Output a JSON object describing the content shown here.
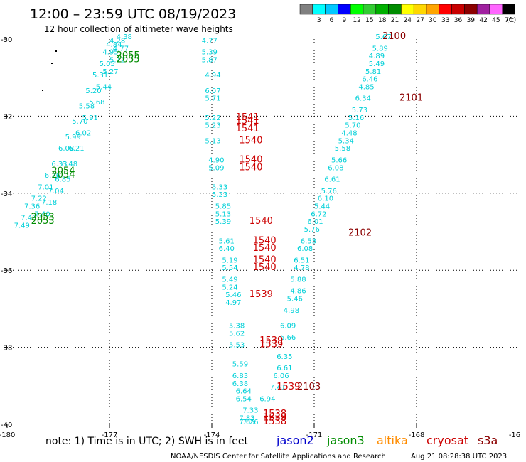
{
  "header": {
    "title": "12:00 – 23:59 UTC 08/19/2023",
    "subtitle": "12 hour collection of altimeter wave heights"
  },
  "colorbar": {
    "unit": "(ft)",
    "bins": [
      {
        "label": "",
        "color": "#808080"
      },
      {
        "label": "3",
        "color": "#00ffff"
      },
      {
        "label": "6",
        "color": "#00c8ff"
      },
      {
        "label": "9",
        "color": "#0000ff"
      },
      {
        "label": "12",
        "color": "#00ff00"
      },
      {
        "label": "15",
        "color": "#32cd32"
      },
      {
        "label": "18",
        "color": "#00b000"
      },
      {
        "label": "21",
        "color": "#008c00"
      },
      {
        "label": "24",
        "color": "#ffff00"
      },
      {
        "label": "27",
        "color": "#ffd700"
      },
      {
        "label": "30",
        "color": "#ffa500"
      },
      {
        "label": "33",
        "color": "#ff0000"
      },
      {
        "label": "36",
        "color": "#c80000"
      },
      {
        "label": "39",
        "color": "#8b0000"
      },
      {
        "label": "42",
        "color": "#a020a0"
      },
      {
        "label": "45",
        "color": "#ff66ff"
      },
      {
        "label": "70",
        "color": "#000000"
      }
    ]
  },
  "footer": {
    "note": "note: 1) Time is in UTC; 2) SWH is in feet",
    "credit": "NOAA/NESDIS Center for Satellite Applications and Research",
    "timestamp": "Aug 21 08:28:38 UTC 2023",
    "legend": [
      {
        "name": "jason2",
        "color": "#0000cc"
      },
      {
        "name": "jason3",
        "color": "#008c00"
      },
      {
        "name": "altika",
        "color": "#ff8c00"
      },
      {
        "name": "cryosat",
        "color": "#cc0000"
      },
      {
        "name": "s3a",
        "color": "#8b0000"
      }
    ]
  },
  "chart_data": {
    "type": "scatter",
    "xlim": [
      -180,
      -165
    ],
    "ylim": [
      -40,
      -30
    ],
    "x_ticks": [
      "-180",
      "-177",
      "-174",
      "-171",
      "-168",
      "-16"
    ],
    "y_ticks": [
      "-30",
      "-32",
      "-34",
      "-36",
      "-38",
      "-40"
    ],
    "grid": true,
    "wave_heights": [
      {
        "lon": -174.3,
        "lat": -30.1,
        "text": "4.77"
      },
      {
        "lon": -174.3,
        "lat": -30.4,
        "text": "5.39"
      },
      {
        "lon": -174.3,
        "lat": -30.6,
        "text": "5.87"
      },
      {
        "lon": -174.2,
        "lat": -31.0,
        "text": "4.94"
      },
      {
        "lon": -174.2,
        "lat": -31.4,
        "text": "6.07"
      },
      {
        "lon": -174.2,
        "lat": -31.6,
        "text": "5.71"
      },
      {
        "lon": -174.2,
        "lat": -32.1,
        "text": "5.22"
      },
      {
        "lon": -174.2,
        "lat": -32.3,
        "text": "5.23"
      },
      {
        "lon": -174.2,
        "lat": -32.7,
        "text": "5.13"
      },
      {
        "lon": -174.1,
        "lat": -33.2,
        "text": "4.90"
      },
      {
        "lon": -174.1,
        "lat": -33.4,
        "text": "5.09"
      },
      {
        "lon": -174.0,
        "lat": -33.9,
        "text": "5.33"
      },
      {
        "lon": -174.0,
        "lat": -34.1,
        "text": "5.23"
      },
      {
        "lon": -173.9,
        "lat": -34.4,
        "text": "5.85"
      },
      {
        "lon": -173.9,
        "lat": -34.6,
        "text": "5.13"
      },
      {
        "lon": -173.9,
        "lat": -34.8,
        "text": "5.39"
      },
      {
        "lon": -173.8,
        "lat": -35.3,
        "text": "5.61"
      },
      {
        "lon": -173.8,
        "lat": -35.5,
        "text": "6.40"
      },
      {
        "lon": -173.7,
        "lat": -35.8,
        "text": "5.19"
      },
      {
        "lon": -173.7,
        "lat": -36.0,
        "text": "5.54"
      },
      {
        "lon": -173.7,
        "lat": -36.3,
        "text": "5.49"
      },
      {
        "lon": -173.7,
        "lat": -36.5,
        "text": "5.24"
      },
      {
        "lon": -173.6,
        "lat": -36.7,
        "text": "5.46"
      },
      {
        "lon": -173.6,
        "lat": -36.9,
        "text": "4.97"
      },
      {
        "lon": -173.5,
        "lat": -37.5,
        "text": "5.38"
      },
      {
        "lon": -173.5,
        "lat": -37.7,
        "text": "5.62"
      },
      {
        "lon": -173.5,
        "lat": -38.0,
        "text": "5.53"
      },
      {
        "lon": -173.4,
        "lat": -38.5,
        "text": "5.59"
      },
      {
        "lon": -173.4,
        "lat": -38.8,
        "text": "6.83"
      },
      {
        "lon": -173.4,
        "lat": -39.0,
        "text": "6.38"
      },
      {
        "lon": -173.3,
        "lat": -39.2,
        "text": "6.64"
      },
      {
        "lon": -173.3,
        "lat": -39.4,
        "text": "6.54"
      },
      {
        "lon": -173.1,
        "lat": -39.7,
        "text": "7.33"
      },
      {
        "lon": -173.2,
        "lat": -39.9,
        "text": "7.83"
      },
      {
        "lon": -173.1,
        "lat": -40.0,
        "text": "7.26"
      },
      {
        "lon": -173.2,
        "lat": -40.0,
        "text": "7.65"
      },
      {
        "lon": -172.1,
        "lat": -38.3,
        "text": "6.35"
      },
      {
        "lon": -172.1,
        "lat": -38.6,
        "text": "6.61"
      },
      {
        "lon": -172.2,
        "lat": -38.8,
        "text": "6.06"
      },
      {
        "lon": -172.3,
        "lat": -39.1,
        "text": "7.41"
      },
      {
        "lon": -172.6,
        "lat": -39.4,
        "text": "6.94"
      },
      {
        "lon": -172.0,
        "lat": -37.5,
        "text": "6.09"
      },
      {
        "lon": -172.0,
        "lat": -37.8,
        "text": "6.66"
      },
      {
        "lon": -171.9,
        "lat": -37.1,
        "text": "4.98"
      },
      {
        "lon": -171.8,
        "lat": -36.8,
        "text": "5.46"
      },
      {
        "lon": -171.7,
        "lat": -36.6,
        "text": "4.86"
      },
      {
        "lon": -171.7,
        "lat": -36.3,
        "text": "5.88"
      },
      {
        "lon": -171.6,
        "lat": -36.0,
        "text": "4.78"
      },
      {
        "lon": -171.6,
        "lat": -35.8,
        "text": "6.51"
      },
      {
        "lon": -171.5,
        "lat": -35.5,
        "text": "6.08"
      },
      {
        "lon": -171.4,
        "lat": -35.3,
        "text": "6.53"
      },
      {
        "lon": -171.3,
        "lat": -35.0,
        "text": "5.76"
      },
      {
        "lon": -171.2,
        "lat": -34.8,
        "text": "6.01"
      },
      {
        "lon": -171.1,
        "lat": -34.6,
        "text": "6.72"
      },
      {
        "lon": -171.0,
        "lat": -34.4,
        "text": "5.44"
      },
      {
        "lon": -170.9,
        "lat": -34.2,
        "text": "6.10"
      },
      {
        "lon": -170.8,
        "lat": -34.0,
        "text": "5.76"
      },
      {
        "lon": -170.7,
        "lat": -33.7,
        "text": "6.61"
      },
      {
        "lon": -170.6,
        "lat": -33.4,
        "text": "6.08"
      },
      {
        "lon": -170.5,
        "lat": -33.2,
        "text": "5.66"
      },
      {
        "lon": -170.4,
        "lat": -32.9,
        "text": "5.58"
      },
      {
        "lon": -170.3,
        "lat": -32.7,
        "text": "5.34"
      },
      {
        "lon": -170.2,
        "lat": -32.5,
        "text": "4.48"
      },
      {
        "lon": -170.1,
        "lat": -32.3,
        "text": "5.70"
      },
      {
        "lon": -170.0,
        "lat": -32.1,
        "text": "5.16"
      },
      {
        "lon": -169.9,
        "lat": -31.9,
        "text": "5.73"
      },
      {
        "lon": -169.8,
        "lat": -31.6,
        "text": "6.34"
      },
      {
        "lon": -169.7,
        "lat": -31.3,
        "text": "4.85"
      },
      {
        "lon": -169.6,
        "lat": -31.1,
        "text": "6.46"
      },
      {
        "lon": -169.5,
        "lat": -30.9,
        "text": "5.81"
      },
      {
        "lon": -169.4,
        "lat": -30.7,
        "text": "5.49"
      },
      {
        "lon": -169.4,
        "lat": -30.5,
        "text": "4.89"
      },
      {
        "lon": -169.3,
        "lat": -30.3,
        "text": "5.89"
      },
      {
        "lon": -169.2,
        "lat": -30.0,
        "text": "5.67"
      },
      {
        "lon": -177.0,
        "lat": -30.1,
        "text": "4.28"
      },
      {
        "lon": -177.1,
        "lat": -30.2,
        "text": "4.84"
      },
      {
        "lon": -177.2,
        "lat": -30.4,
        "text": "4.95"
      },
      {
        "lon": -177.3,
        "lat": -30.7,
        "text": "5.05"
      },
      {
        "lon": -177.5,
        "lat": -31.0,
        "text": "5.31"
      },
      {
        "lon": -177.7,
        "lat": -31.4,
        "text": "5.20"
      },
      {
        "lon": -177.9,
        "lat": -31.8,
        "text": "5.58"
      },
      {
        "lon": -178.1,
        "lat": -32.2,
        "text": "5.70"
      },
      {
        "lon": -178.3,
        "lat": -32.6,
        "text": "5.99"
      },
      {
        "lon": -178.5,
        "lat": -32.9,
        "text": "6.08"
      },
      {
        "lon": -178.7,
        "lat": -33.3,
        "text": "6.33"
      },
      {
        "lon": -178.9,
        "lat": -33.6,
        "text": "6.76"
      },
      {
        "lon": -179.1,
        "lat": -33.9,
        "text": "7.01"
      },
      {
        "lon": -179.3,
        "lat": -34.2,
        "text": "7.22"
      },
      {
        "lon": -179.5,
        "lat": -34.4,
        "text": "7.36"
      },
      {
        "lon": -179.6,
        "lat": -34.7,
        "text": "7.49"
      },
      {
        "lon": -179.8,
        "lat": -34.9,
        "text": "7.49"
      },
      {
        "lon": -176.8,
        "lat": -30.0,
        "text": "4.38"
      },
      {
        "lon": -176.9,
        "lat": -30.3,
        "text": "4.77"
      },
      {
        "lon": -177.0,
        "lat": -30.6,
        "text": "5.12"
      },
      {
        "lon": -177.2,
        "lat": -30.9,
        "text": "5.27"
      },
      {
        "lon": -177.4,
        "lat": -31.3,
        "text": "5.44"
      },
      {
        "lon": -177.6,
        "lat": -31.7,
        "text": "5.68"
      },
      {
        "lon": -177.8,
        "lat": -32.1,
        "text": "5.91"
      },
      {
        "lon": -178.0,
        "lat": -32.5,
        "text": "6.02"
      },
      {
        "lon": -178.2,
        "lat": -32.9,
        "text": "6.21"
      },
      {
        "lon": -178.4,
        "lat": -33.3,
        "text": "6.48"
      },
      {
        "lon": -178.6,
        "lat": -33.7,
        "text": "6.85"
      },
      {
        "lon": -178.8,
        "lat": -34.0,
        "text": "7.04"
      },
      {
        "lon": -179.0,
        "lat": -34.3,
        "text": "7.18"
      },
      {
        "lon": -179.2,
        "lat": -34.6,
        "text": "7.40"
      }
    ],
    "pass_times": [
      {
        "lon": -169.0,
        "lat": -30.0,
        "text": "2100",
        "satellite": "s3a"
      },
      {
        "lon": -168.5,
        "lat": -31.6,
        "text": "2101",
        "satellite": "s3a"
      },
      {
        "lon": -170.0,
        "lat": -35.1,
        "text": "2102",
        "satellite": "s3a"
      },
      {
        "lon": -171.5,
        "lat": -39.1,
        "text": "2103",
        "satellite": "s3a"
      },
      {
        "lon": -173.3,
        "lat": -32.1,
        "text": "1541",
        "satellite": "cryosat"
      },
      {
        "lon": -173.3,
        "lat": -32.2,
        "text": "1541",
        "satellite": "cryosat"
      },
      {
        "lon": -173.3,
        "lat": -32.4,
        "text": "1541",
        "satellite": "cryosat"
      },
      {
        "lon": -173.2,
        "lat": -32.7,
        "text": "1540",
        "satellite": "cryosat"
      },
      {
        "lon": -173.2,
        "lat": -33.2,
        "text": "1540",
        "satellite": "cryosat"
      },
      {
        "lon": -173.2,
        "lat": -33.4,
        "text": "1540",
        "satellite": "cryosat"
      },
      {
        "lon": -172.9,
        "lat": -34.8,
        "text": "1540",
        "satellite": "cryosat"
      },
      {
        "lon": -172.8,
        "lat": -35.3,
        "text": "1540",
        "satellite": "cryosat"
      },
      {
        "lon": -172.8,
        "lat": -35.5,
        "text": "1540",
        "satellite": "cryosat"
      },
      {
        "lon": -172.8,
        "lat": -35.8,
        "text": "1540",
        "satellite": "cryosat"
      },
      {
        "lon": -172.8,
        "lat": -36.0,
        "text": "1540",
        "satellite": "cryosat"
      },
      {
        "lon": -172.9,
        "lat": -36.7,
        "text": "1539",
        "satellite": "cryosat"
      },
      {
        "lon": -172.6,
        "lat": -37.9,
        "text": "1539",
        "satellite": "cryosat"
      },
      {
        "lon": -172.6,
        "lat": -38.0,
        "text": "1539",
        "satellite": "cryosat"
      },
      {
        "lon": -172.1,
        "lat": -39.1,
        "text": "1539",
        "satellite": "cryosat"
      },
      {
        "lon": -172.5,
        "lat": -39.8,
        "text": "1538",
        "satellite": "cryosat"
      },
      {
        "lon": -172.5,
        "lat": -39.9,
        "text": "1539",
        "satellite": "cryosat"
      },
      {
        "lon": -172.5,
        "lat": -40.0,
        "text": "1538",
        "satellite": "cryosat"
      },
      {
        "lon": -176.8,
        "lat": -30.5,
        "text": "2055",
        "satellite": "jason3"
      },
      {
        "lon": -176.8,
        "lat": -30.6,
        "text": "2055",
        "satellite": "jason3"
      },
      {
        "lon": -178.7,
        "lat": -33.5,
        "text": "2054",
        "satellite": "jason3"
      },
      {
        "lon": -178.7,
        "lat": -33.6,
        "text": "2054",
        "satellite": "jason3"
      },
      {
        "lon": -179.3,
        "lat": -34.7,
        "text": "2053",
        "satellite": "jason3"
      },
      {
        "lon": -179.3,
        "lat": -34.8,
        "text": "2053",
        "satellite": "jason3"
      }
    ]
  }
}
